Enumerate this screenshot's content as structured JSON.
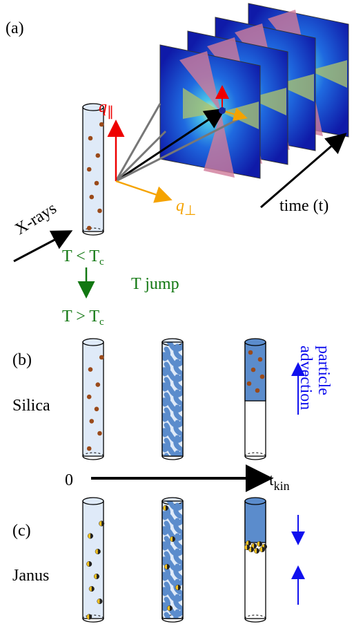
{
  "panel_a": {
    "label": "(a)",
    "q_parallel": {
      "base": "q",
      "sub": "∥"
    },
    "q_perp": {
      "base": "q",
      "sub": "⊥"
    },
    "xrays": "X-rays",
    "time": "time (t)",
    "t_below": {
      "base": "T < T",
      "sub": "c"
    },
    "t_jump": "T jump",
    "t_above": {
      "base": "T > T",
      "sub": "c"
    }
  },
  "panel_b": {
    "label": "(b)",
    "sample": "Silica",
    "advection": [
      "particle",
      "advection"
    ]
  },
  "time_axis": {
    "start": "0",
    "end": {
      "base": "t",
      "sub": "kin"
    }
  },
  "panel_c": {
    "label": "(c)",
    "sample": "Janus"
  }
}
